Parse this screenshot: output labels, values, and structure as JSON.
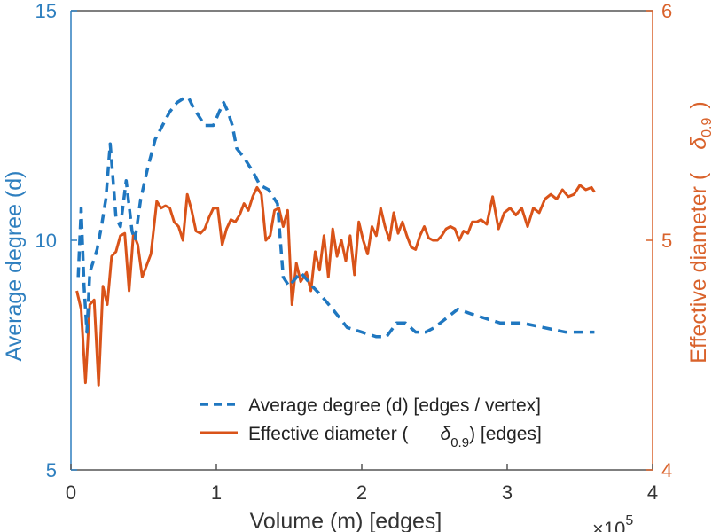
{
  "chart_data": {
    "type": "line",
    "xlabel": "Volume (m) [edges]",
    "x_multiplier": "×10",
    "x_multiplier_exp": "5",
    "ylabel_left": "Average degree (d)",
    "ylabel_right_main": "Effective diameter (",
    "ylabel_right_sym": "δ",
    "ylabel_right_sub": "0.9",
    "ylabel_right_close": ")",
    "xlim": [
      0,
      4
    ],
    "ylim_left": [
      5,
      15
    ],
    "ylim_right": [
      4,
      6
    ],
    "x_ticks": [
      "0",
      "1",
      "2",
      "3",
      "4"
    ],
    "y_left_ticks": [
      "5",
      "10",
      "15"
    ],
    "y_right_ticks": [
      "4",
      "5",
      "6"
    ],
    "legend": {
      "placement": "bottom-right",
      "entry1": "Average degree (d) [edges / vertex]",
      "entry2_main": "Effective diameter (",
      "entry2_sym": "δ",
      "entry2_sub": "0.9",
      "entry2_tail": ") [edges]"
    },
    "colors": {
      "degree": "#1f77c0",
      "diameter": "#d95319",
      "left_axis": "#2e7fbf",
      "right_axis": "#d9622b"
    },
    "series": [
      {
        "name": "Average degree (d) [edges / vertex]",
        "axis": "left",
        "style": "dashed",
        "x": [
          0.05,
          0.07,
          0.09,
          0.11,
          0.13,
          0.15,
          0.18,
          0.21,
          0.24,
          0.27,
          0.29,
          0.31,
          0.34,
          0.38,
          0.42,
          0.44,
          0.48,
          0.53,
          0.58,
          0.63,
          0.68,
          0.73,
          0.78,
          0.81,
          0.84,
          0.88,
          0.92,
          0.98,
          1.02,
          1.05,
          1.08,
          1.11,
          1.14,
          1.19,
          1.25,
          1.3,
          1.36,
          1.42,
          1.46,
          1.5,
          1.58,
          1.66,
          1.72,
          1.8,
          1.9,
          2.0,
          2.1,
          2.17,
          2.24,
          2.3,
          2.37,
          2.44,
          2.5,
          2.58,
          2.66,
          2.75,
          2.85,
          2.95,
          3.1,
          3.25,
          3.4,
          3.5,
          3.6
        ],
        "y": [
          9.2,
          10.7,
          9.0,
          8.0,
          9.3,
          9.5,
          9.8,
          10.3,
          10.9,
          12.1,
          11.3,
          10.5,
          10.3,
          11.3,
          10.2,
          10.0,
          10.9,
          11.6,
          12.2,
          12.5,
          12.8,
          13.0,
          13.1,
          13.1,
          12.9,
          12.7,
          12.5,
          12.5,
          12.8,
          13.0,
          12.8,
          12.5,
          12.0,
          11.8,
          11.5,
          11.2,
          11.1,
          10.8,
          9.2,
          9.0,
          9.3,
          9.0,
          8.8,
          8.5,
          8.1,
          8.0,
          7.9,
          7.9,
          8.2,
          8.2,
          8.0,
          8.0,
          8.1,
          8.3,
          8.5,
          8.4,
          8.3,
          8.2,
          8.2,
          8.1,
          8.0,
          8.0,
          8.0
        ]
      },
      {
        "name": "Effective diameter (δ0.9) [edges]",
        "axis": "right",
        "style": "solid",
        "x": [
          0.04,
          0.07,
          0.1,
          0.13,
          0.16,
          0.19,
          0.22,
          0.25,
          0.28,
          0.31,
          0.34,
          0.37,
          0.4,
          0.43,
          0.46,
          0.49,
          0.52,
          0.55,
          0.59,
          0.62,
          0.65,
          0.68,
          0.71,
          0.74,
          0.77,
          0.8,
          0.83,
          0.86,
          0.89,
          0.92,
          0.95,
          0.98,
          1.01,
          1.04,
          1.07,
          1.1,
          1.13,
          1.16,
          1.19,
          1.22,
          1.25,
          1.28,
          1.31,
          1.34,
          1.37,
          1.4,
          1.43,
          1.46,
          1.49,
          1.52,
          1.55,
          1.58,
          1.62,
          1.65,
          1.68,
          1.71,
          1.74,
          1.77,
          1.8,
          1.83,
          1.86,
          1.89,
          1.92,
          1.95,
          1.98,
          2.01,
          2.04,
          2.07,
          2.1,
          2.13,
          2.16,
          2.19,
          2.22,
          2.25,
          2.28,
          2.31,
          2.34,
          2.37,
          2.4,
          2.43,
          2.46,
          2.49,
          2.52,
          2.55,
          2.58,
          2.61,
          2.64,
          2.67,
          2.7,
          2.73,
          2.76,
          2.79,
          2.82,
          2.86,
          2.9,
          2.94,
          2.98,
          3.02,
          3.06,
          3.1,
          3.14,
          3.18,
          3.22,
          3.26,
          3.3,
          3.34,
          3.38,
          3.42,
          3.46,
          3.5,
          3.54,
          3.58,
          3.6
        ],
        "y": [
          4.78,
          4.7,
          4.38,
          4.72,
          4.74,
          4.37,
          4.8,
          4.72,
          4.93,
          4.95,
          5.02,
          5.03,
          4.78,
          5.03,
          4.98,
          4.84,
          4.89,
          4.94,
          5.17,
          5.14,
          5.15,
          5.14,
          5.08,
          5.06,
          5.0,
          5.2,
          5.13,
          5.04,
          5.03,
          5.05,
          5.1,
          5.14,
          5.14,
          4.98,
          5.05,
          5.09,
          5.08,
          5.11,
          5.16,
          5.13,
          5.19,
          5.23,
          5.2,
          5.0,
          5.02,
          5.13,
          5.14,
          5.06,
          5.13,
          4.72,
          4.9,
          4.82,
          4.86,
          4.78,
          4.95,
          4.87,
          5.02,
          4.84,
          5.05,
          4.93,
          5.0,
          4.91,
          5.02,
          4.85,
          5.08,
          5.0,
          4.94,
          5.06,
          5.02,
          5.14,
          5.06,
          5.0,
          5.12,
          5.03,
          5.08,
          5.02,
          4.97,
          4.96,
          5.02,
          5.06,
          5.01,
          5.0,
          5.0,
          5.02,
          5.05,
          5.06,
          5.05,
          5.0,
          5.04,
          5.03,
          5.08,
          5.08,
          5.09,
          5.07,
          5.19,
          5.05,
          5.12,
          5.14,
          5.11,
          5.14,
          5.06,
          5.14,
          5.12,
          5.18,
          5.2,
          5.18,
          5.22,
          5.19,
          5.2,
          5.24,
          5.22,
          5.23,
          5.21
        ]
      }
    ]
  }
}
